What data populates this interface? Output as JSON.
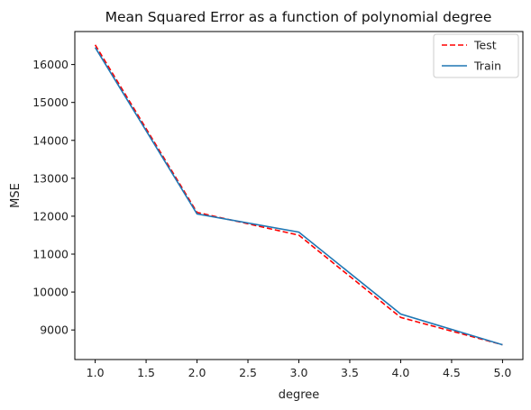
{
  "chart_data": {
    "type": "line",
    "title": "Mean Squared Error as a function of polynomial degree",
    "xlabel": "degree",
    "ylabel": "MSE",
    "xlim": [
      0.8,
      5.2
    ],
    "ylim": [
      8220,
      16870
    ],
    "xticks": [
      "1.0",
      "1.5",
      "2.0",
      "2.5",
      "3.0",
      "3.5",
      "4.0",
      "4.5",
      "5.0"
    ],
    "yticks": [
      "9000",
      "10000",
      "11000",
      "12000",
      "13000",
      "14000",
      "15000",
      "16000"
    ],
    "x": [
      1,
      2,
      3,
      4,
      5
    ],
    "series": [
      {
        "name": "Test",
        "values": [
          16520,
          12100,
          11500,
          9330,
          8610
        ],
        "color": "#ff0000",
        "style": "dashed"
      },
      {
        "name": "Train",
        "values": [
          16450,
          12060,
          11580,
          9420,
          8610
        ],
        "color": "#1f77b4",
        "style": "solid"
      }
    ],
    "legend_position": "top-right",
    "grid": false
  }
}
